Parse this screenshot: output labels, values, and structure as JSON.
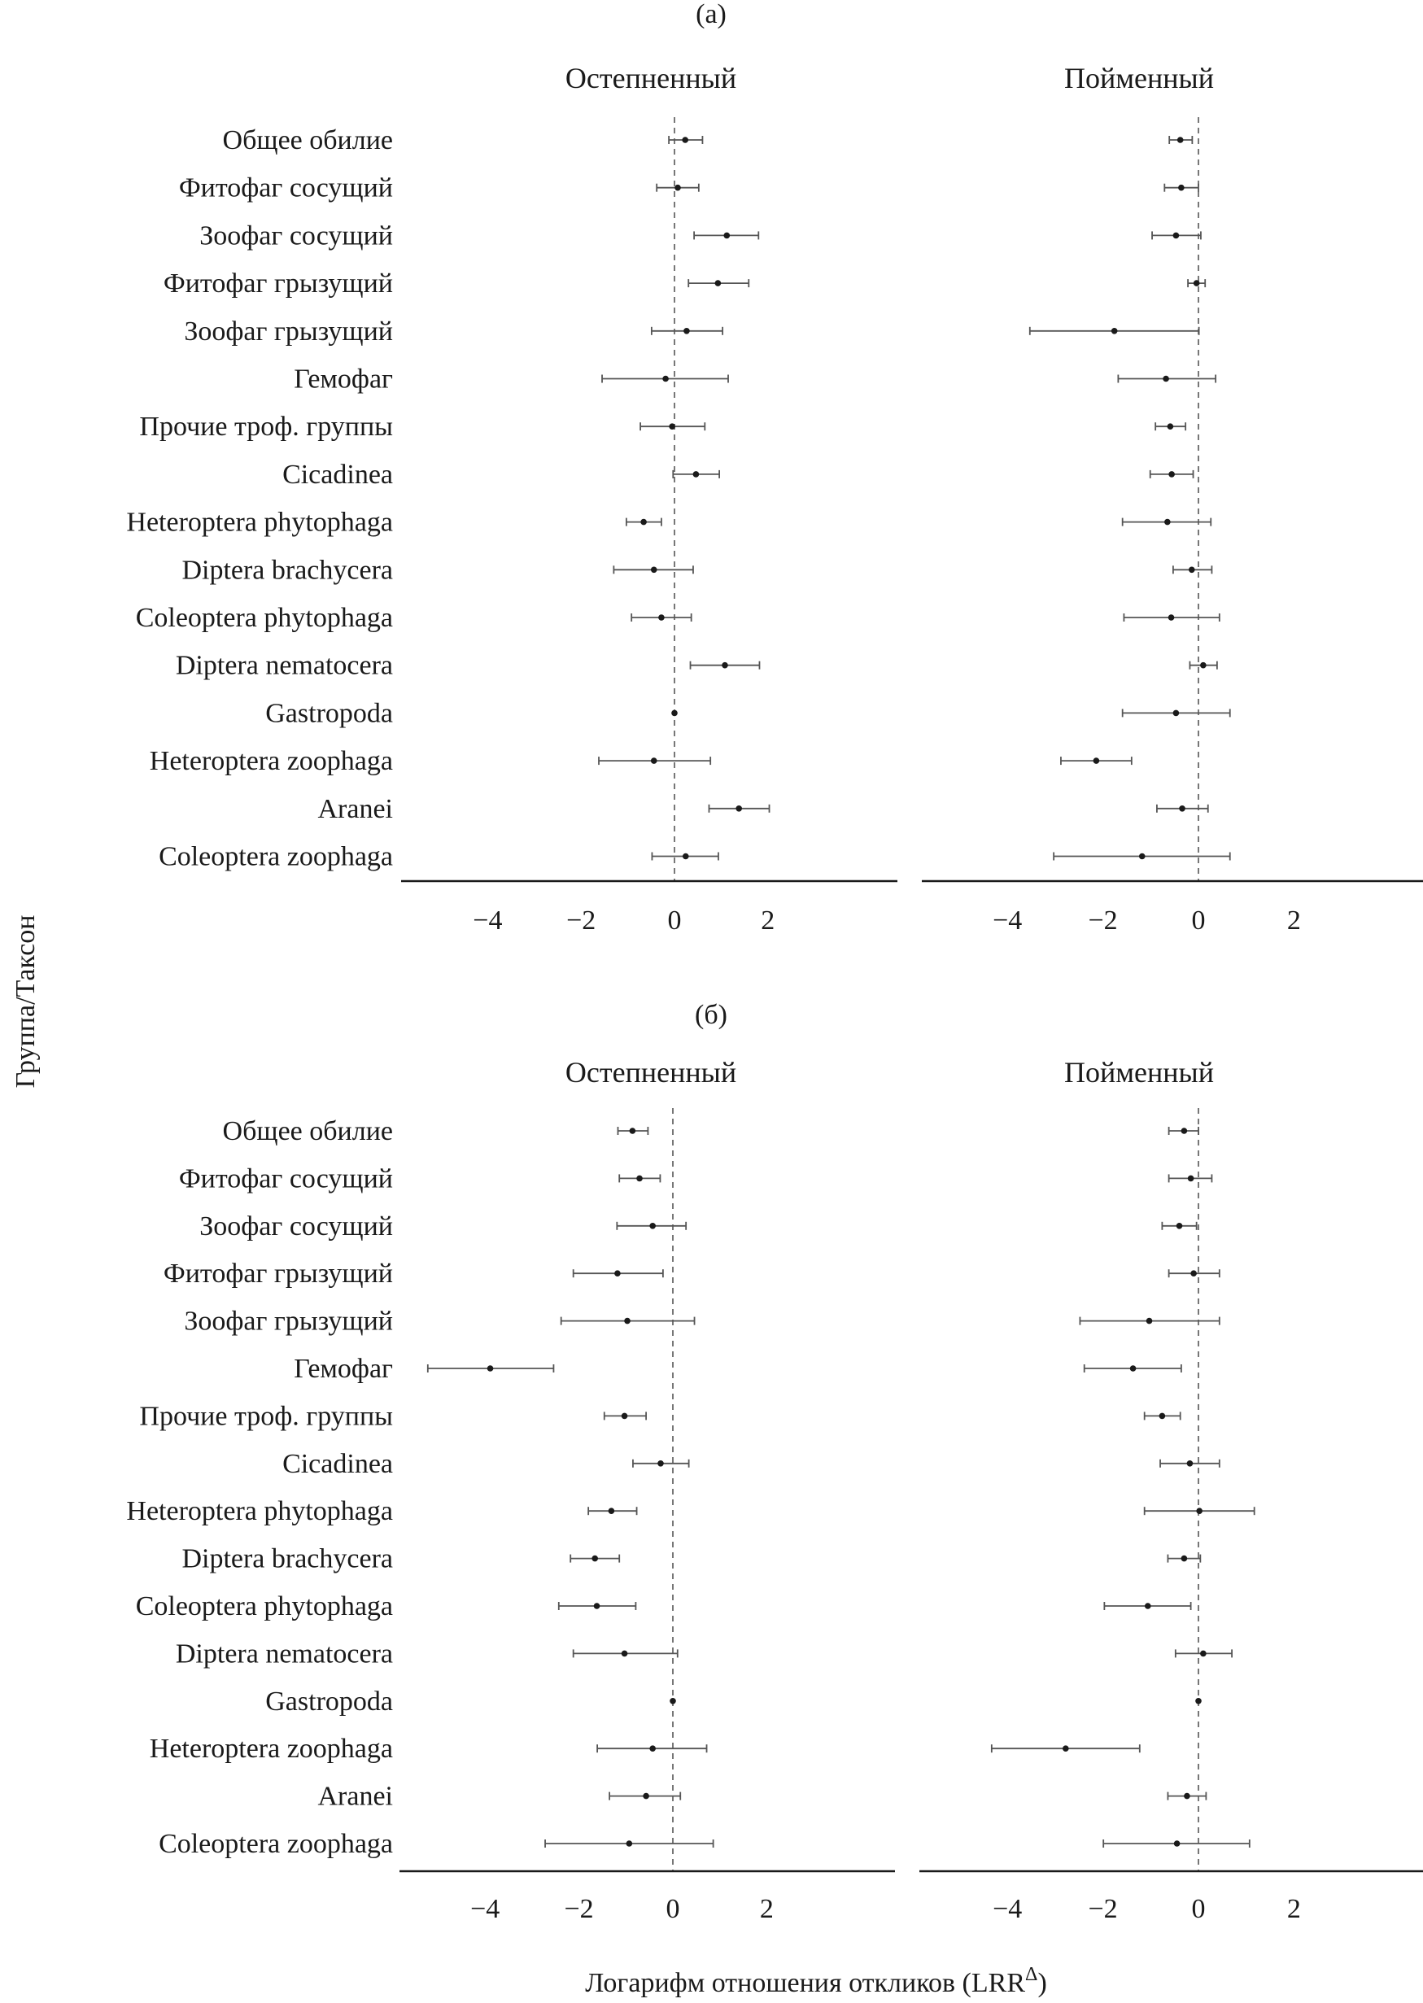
{
  "chart_data": {
    "type": "scatter",
    "subtype": "forest-plot-with-error-bars",
    "ylabel": "Группа/Таксон",
    "xlabel": "Логарифм отношения откликов (LRR",
    "xlabel_sup": "Δ",
    "xlabel_close": ")",
    "xlim": [
      -5.5,
      3
    ],
    "xticks": [
      -4,
      -2,
      0,
      2
    ],
    "xtick_labels": [
      "−4",
      "−2",
      "0",
      "2"
    ],
    "reference_line": 0,
    "categories": [
      "Общее обилие",
      "Фитофаг сосущий",
      "Зоофаг сосущий",
      "Фитофаг грызущий",
      "Зоофаг грызущий",
      "Гемофаг",
      "Прочие троф. группы",
      "Cicadinea",
      "Heteroptera phytophaga",
      "Diptera brachycera",
      "Coleoptera phytophaga",
      "Diptera nematocera",
      "Gastropoda",
      "Heteroptera zoophaga",
      "Aranei",
      "Coleoptera zoophaga"
    ],
    "figures": [
      {
        "label": "(а)",
        "panels": [
          {
            "title": "Остепненный",
            "estimate": [
              0.23,
              0.07,
              1.12,
              0.93,
              0.26,
              -0.19,
              -0.05,
              0.46,
              -0.66,
              -0.44,
              -0.28,
              1.08,
              0.0,
              -0.44,
              1.38,
              0.24
            ],
            "lower": [
              -0.12,
              -0.38,
              0.42,
              0.3,
              -0.49,
              -1.55,
              -0.73,
              -0.03,
              -1.03,
              -1.3,
              -0.92,
              0.34,
              0.0,
              -1.62,
              0.74,
              -0.48
            ],
            "upper": [
              0.6,
              0.52,
              1.8,
              1.59,
              1.03,
              1.15,
              0.65,
              0.96,
              -0.28,
              0.4,
              0.36,
              1.82,
              0.0,
              0.77,
              2.03,
              0.94
            ]
          },
          {
            "title": "Пойменный",
            "estimate": [
              -0.38,
              -0.36,
              -0.47,
              -0.04,
              -1.76,
              -0.68,
              -0.59,
              -0.56,
              -0.65,
              -0.14,
              -0.57,
              0.1,
              -0.47,
              -2.14,
              -0.34,
              -1.18
            ],
            "lower": [
              -0.61,
              -0.71,
              -0.97,
              -0.22,
              -3.53,
              -1.68,
              -0.9,
              -1.01,
              -1.59,
              -0.53,
              -1.56,
              -0.18,
              -1.59,
              -2.88,
              -0.87,
              -3.03
            ],
            "upper": [
              -0.13,
              0.0,
              0.05,
              0.14,
              0.01,
              0.36,
              -0.27,
              -0.11,
              0.26,
              0.28,
              0.44,
              0.39,
              0.66,
              -1.4,
              0.2,
              0.66
            ]
          }
        ]
      },
      {
        "label": "(б)",
        "panels": [
          {
            "title": "Остепненный",
            "estimate": [
              -0.86,
              -0.71,
              -0.43,
              -1.18,
              -0.97,
              -3.89,
              -1.03,
              -0.26,
              -1.31,
              -1.66,
              -1.62,
              -1.03,
              0.0,
              -0.43,
              -0.57,
              -0.93
            ],
            "lower": [
              -1.17,
              -1.14,
              -1.19,
              -2.12,
              -2.38,
              -5.22,
              -1.46,
              -0.85,
              -1.8,
              -2.18,
              -2.43,
              -2.12,
              0.0,
              -1.61,
              -1.35,
              -2.72
            ],
            "upper": [
              -0.53,
              -0.27,
              0.28,
              -0.21,
              0.46,
              -2.54,
              -0.57,
              0.34,
              -0.77,
              -1.14,
              -0.79,
              0.1,
              0.0,
              0.72,
              0.16,
              0.86
            ]
          },
          {
            "title": "Пойменный",
            "estimate": [
              -0.3,
              -0.16,
              -0.4,
              -0.1,
              -1.03,
              -1.37,
              -0.76,
              -0.18,
              0.02,
              -0.3,
              -1.06,
              0.1,
              0.0,
              -2.78,
              -0.24,
              -0.45
            ],
            "lower": [
              -0.62,
              -0.62,
              -0.76,
              -0.62,
              -2.48,
              -2.39,
              -1.13,
              -0.8,
              -1.13,
              -0.64,
              -1.97,
              -0.48,
              0.0,
              -4.33,
              -0.64,
              -1.99
            ],
            "upper": [
              0.0,
              0.28,
              -0.04,
              0.44,
              0.44,
              -0.36,
              -0.38,
              0.44,
              1.17,
              0.04,
              -0.16,
              0.7,
              0.0,
              -1.23,
              0.16,
              1.07
            ]
          }
        ]
      }
    ],
    "colors": {
      "marks": "#1a1a1a",
      "errorbar": "#555555",
      "reference_line": "#555555",
      "axis": "#1a1a1a"
    }
  }
}
